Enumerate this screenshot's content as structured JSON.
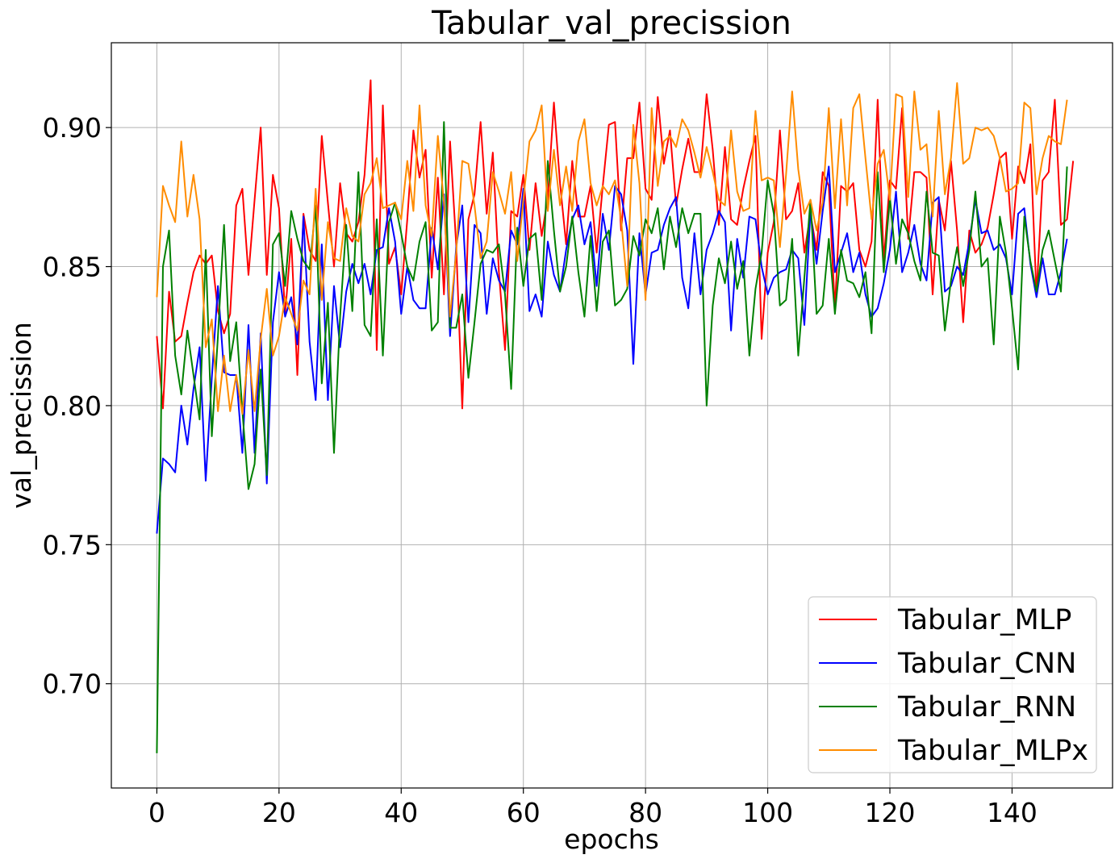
{
  "chart_data": {
    "type": "line",
    "title": "Tabular_val_precission",
    "xlabel": "epochs",
    "ylabel": "val_precission",
    "xlim": [
      -7.45,
      156.45
    ],
    "ylim": [
      0.6625,
      0.9305
    ],
    "xticks": [
      0,
      20,
      40,
      60,
      80,
      100,
      120,
      140
    ],
    "xtick_labels": [
      "0",
      "20",
      "40",
      "60",
      "80",
      "100",
      "120",
      "140"
    ],
    "yticks": [
      0.7,
      0.75,
      0.8,
      0.85,
      0.9
    ],
    "ytick_labels": [
      "0.70",
      "0.75",
      "0.80",
      "0.85",
      "0.90"
    ],
    "grid": true,
    "legend_position": "lower-right",
    "series": [
      {
        "name": "Tabular_MLP",
        "color": "#ff0000",
        "values": [
          0.825,
          0.799,
          0.841,
          0.823,
          0.825,
          0.837,
          0.848,
          0.854,
          0.851,
          0.854,
          0.834,
          0.826,
          0.833,
          0.872,
          0.878,
          0.847,
          0.874,
          0.9,
          0.847,
          0.883,
          0.871,
          0.833,
          0.86,
          0.811,
          0.869,
          0.856,
          0.852,
          0.897,
          0.873,
          0.85,
          0.88,
          0.862,
          0.859,
          0.866,
          0.883,
          0.917,
          0.82,
          0.908,
          0.851,
          0.857,
          0.84,
          0.867,
          0.899,
          0.882,
          0.892,
          0.846,
          0.882,
          0.84,
          0.895,
          0.858,
          0.799,
          0.867,
          0.876,
          0.902,
          0.869,
          0.891,
          0.848,
          0.82,
          0.87,
          0.868,
          0.883,
          0.856,
          0.88,
          0.861,
          0.875,
          0.909,
          0.88,
          0.858,
          0.888,
          0.868,
          0.868,
          0.879,
          0.855,
          0.879,
          0.901,
          0.902,
          0.863,
          0.889,
          0.889,
          0.909,
          0.878,
          0.874,
          0.911,
          0.887,
          0.899,
          0.872,
          0.885,
          0.896,
          0.884,
          0.884,
          0.912,
          0.892,
          0.865,
          0.893,
          0.867,
          0.865,
          0.878,
          0.888,
          0.897,
          0.824,
          0.855,
          0.866,
          0.899,
          0.867,
          0.87,
          0.88,
          0.855,
          0.869,
          0.856,
          0.884,
          0.879,
          0.835,
          0.879,
          0.877,
          0.88,
          0.856,
          0.85,
          0.859,
          0.91,
          0.852,
          0.881,
          0.878,
          0.907,
          0.86,
          0.884,
          0.884,
          0.882,
          0.84,
          0.874,
          0.863,
          0.888,
          0.863,
          0.83,
          0.863,
          0.855,
          0.858,
          0.864,
          0.876,
          0.889,
          0.891,
          0.86,
          0.886,
          0.88,
          0.894,
          0.84,
          0.881,
          0.884,
          0.91,
          0.865,
          0.867,
          0.888
        ]
      },
      {
        "name": "Tabular_CNN",
        "color": "#0000ff",
        "values": [
          0.754,
          0.781,
          0.779,
          0.776,
          0.8,
          0.786,
          0.806,
          0.821,
          0.773,
          0.81,
          0.843,
          0.812,
          0.811,
          0.811,
          0.783,
          0.829,
          0.783,
          0.826,
          0.772,
          0.83,
          0.848,
          0.832,
          0.839,
          0.822,
          0.868,
          0.823,
          0.802,
          0.858,
          0.802,
          0.843,
          0.821,
          0.841,
          0.851,
          0.844,
          0.851,
          0.84,
          0.856,
          0.857,
          0.871,
          0.859,
          0.833,
          0.85,
          0.838,
          0.835,
          0.835,
          0.864,
          0.849,
          0.876,
          0.825,
          0.857,
          0.872,
          0.83,
          0.865,
          0.862,
          0.833,
          0.853,
          0.845,
          0.841,
          0.863,
          0.858,
          0.878,
          0.834,
          0.84,
          0.832,
          0.859,
          0.847,
          0.841,
          0.856,
          0.867,
          0.872,
          0.858,
          0.866,
          0.843,
          0.869,
          0.856,
          0.879,
          0.876,
          0.863,
          0.815,
          0.862,
          0.84,
          0.855,
          0.856,
          0.865,
          0.871,
          0.875,
          0.846,
          0.835,
          0.862,
          0.84,
          0.856,
          0.862,
          0.87,
          0.866,
          0.827,
          0.86,
          0.846,
          0.868,
          0.867,
          0.85,
          0.84,
          0.846,
          0.848,
          0.849,
          0.856,
          0.853,
          0.829,
          0.87,
          0.851,
          0.87,
          0.886,
          0.848,
          0.855,
          0.862,
          0.848,
          0.855,
          0.84,
          0.832,
          0.835,
          0.844,
          0.856,
          0.877,
          0.848,
          0.855,
          0.865,
          0.851,
          0.845,
          0.873,
          0.875,
          0.841,
          0.843,
          0.85,
          0.847,
          0.859,
          0.874,
          0.862,
          0.863,
          0.856,
          0.858,
          0.853,
          0.84,
          0.869,
          0.871,
          0.851,
          0.839,
          0.853,
          0.84,
          0.84,
          0.848,
          0.86
        ]
      },
      {
        "name": "Tabular_RNN",
        "color": "#008000",
        "values": [
          0.675,
          0.85,
          0.863,
          0.818,
          0.804,
          0.827,
          0.811,
          0.795,
          0.856,
          0.789,
          0.825,
          0.865,
          0.816,
          0.83,
          0.798,
          0.77,
          0.779,
          0.813,
          0.775,
          0.858,
          0.862,
          0.843,
          0.87,
          0.86,
          0.852,
          0.849,
          0.872,
          0.808,
          0.837,
          0.783,
          0.832,
          0.865,
          0.834,
          0.884,
          0.829,
          0.825,
          0.867,
          0.818,
          0.866,
          0.873,
          0.862,
          0.85,
          0.845,
          0.859,
          0.866,
          0.827,
          0.83,
          0.902,
          0.828,
          0.828,
          0.84,
          0.81,
          0.83,
          0.851,
          0.856,
          0.855,
          0.858,
          0.84,
          0.806,
          0.864,
          0.843,
          0.86,
          0.862,
          0.838,
          0.888,
          0.863,
          0.841,
          0.85,
          0.868,
          0.848,
          0.832,
          0.861,
          0.834,
          0.859,
          0.863,
          0.836,
          0.838,
          0.842,
          0.861,
          0.854,
          0.867,
          0.862,
          0.871,
          0.849,
          0.868,
          0.857,
          0.871,
          0.862,
          0.869,
          0.869,
          0.8,
          0.836,
          0.853,
          0.844,
          0.859,
          0.842,
          0.852,
          0.818,
          0.842,
          0.855,
          0.881,
          0.869,
          0.836,
          0.838,
          0.86,
          0.818,
          0.846,
          0.874,
          0.833,
          0.836,
          0.86,
          0.833,
          0.856,
          0.845,
          0.844,
          0.839,
          0.848,
          0.826,
          0.884,
          0.848,
          0.875,
          0.851,
          0.867,
          0.862,
          0.852,
          0.845,
          0.877,
          0.855,
          0.854,
          0.827,
          0.845,
          0.857,
          0.843,
          0.856,
          0.877,
          0.85,
          0.853,
          0.822,
          0.868,
          0.855,
          0.835,
          0.813,
          0.868,
          0.852,
          0.841,
          0.856,
          0.863,
          0.852,
          0.841,
          0.886
        ]
      },
      {
        "name": "Tabular_MLPx",
        "color": "#ff8c00",
        "values": [
          0.839,
          0.879,
          0.872,
          0.866,
          0.895,
          0.868,
          0.883,
          0.867,
          0.821,
          0.831,
          0.798,
          0.818,
          0.798,
          0.811,
          0.797,
          0.82,
          0.798,
          0.824,
          0.842,
          0.818,
          0.825,
          0.839,
          0.833,
          0.827,
          0.845,
          0.84,
          0.878,
          0.838,
          0.866,
          0.853,
          0.852,
          0.871,
          0.861,
          0.859,
          0.876,
          0.88,
          0.889,
          0.871,
          0.872,
          0.873,
          0.867,
          0.888,
          0.87,
          0.908,
          0.872,
          0.861,
          0.897,
          0.873,
          0.832,
          0.855,
          0.888,
          0.887,
          0.872,
          0.853,
          0.859,
          0.884,
          0.877,
          0.869,
          0.884,
          0.852,
          0.874,
          0.895,
          0.899,
          0.908,
          0.87,
          0.892,
          0.872,
          0.886,
          0.87,
          0.895,
          0.903,
          0.88,
          0.872,
          0.879,
          0.876,
          0.881,
          0.867,
          0.843,
          0.901,
          0.88,
          0.838,
          0.907,
          0.879,
          0.895,
          0.897,
          0.893,
          0.903,
          0.899,
          0.891,
          0.882,
          0.893,
          0.884,
          0.874,
          0.872,
          0.899,
          0.877,
          0.87,
          0.871,
          0.906,
          0.881,
          0.882,
          0.881,
          0.857,
          0.883,
          0.913,
          0.885,
          0.869,
          0.874,
          0.863,
          0.873,
          0.907,
          0.871,
          0.903,
          0.872,
          0.907,
          0.912,
          0.889,
          0.867,
          0.887,
          0.892,
          0.874,
          0.912,
          0.911,
          0.875,
          0.913,
          0.892,
          0.894,
          0.868,
          0.906,
          0.876,
          0.889,
          0.916,
          0.887,
          0.889,
          0.9,
          0.899,
          0.9,
          0.897,
          0.889,
          0.877,
          0.878,
          0.88,
          0.909,
          0.907,
          0.876,
          0.889,
          0.897,
          0.895,
          0.894,
          0.91
        ]
      }
    ]
  }
}
